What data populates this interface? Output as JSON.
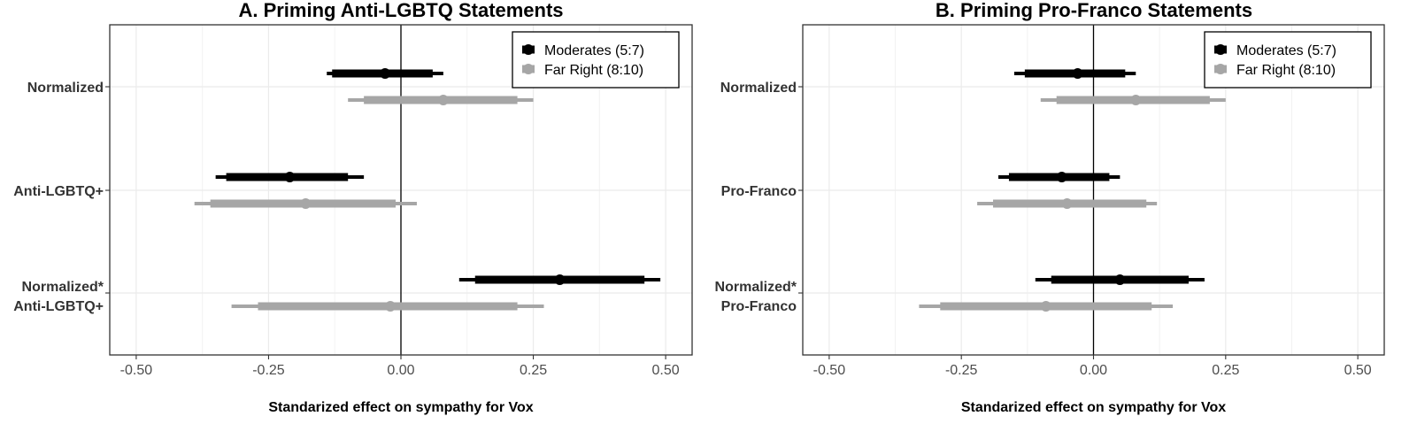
{
  "chart_data": [
    {
      "type": "coefficient-plot",
      "title": "A. Priming Anti-LGBTQ Statements",
      "xlabel": "Standarized effect on sympathy for Vox",
      "xlim": [
        -0.55,
        0.55
      ],
      "xticks": [
        -0.5,
        -0.25,
        0.0,
        0.25,
        0.5
      ],
      "xtick_labels": [
        "-0.50",
        "-0.25",
        "0.00",
        "0.25",
        "0.50"
      ],
      "grid": true,
      "reference_line": 0,
      "legend_position": "top-right",
      "categories": [
        {
          "lines": [
            "Normalized"
          ]
        },
        {
          "lines": [
            "Anti-LGBTQ+"
          ]
        },
        {
          "lines": [
            "Normalized*",
            "Anti-LGBTQ+"
          ]
        }
      ],
      "series": [
        {
          "name": "Moderates (5:7)",
          "color": "#000000",
          "estimates": [
            -0.03,
            -0.21,
            0.3
          ],
          "ci90": [
            [
              -0.13,
              0.06
            ],
            [
              -0.33,
              -0.1
            ],
            [
              0.14,
              0.46
            ]
          ],
          "ci95": [
            [
              -0.14,
              0.08
            ],
            [
              -0.35,
              -0.07
            ],
            [
              0.11,
              0.49
            ]
          ]
        },
        {
          "name": "Far Right (8:10)",
          "color": "#a6a6a6",
          "estimates": [
            0.08,
            -0.18,
            -0.02
          ],
          "ci90": [
            [
              -0.07,
              0.22
            ],
            [
              -0.36,
              -0.01
            ],
            [
              -0.27,
              0.22
            ]
          ],
          "ci95": [
            [
              -0.1,
              0.25
            ],
            [
              -0.39,
              0.03
            ],
            [
              -0.32,
              0.27
            ]
          ]
        }
      ]
    },
    {
      "type": "coefficient-plot",
      "title": "B. Priming Pro-Franco Statements",
      "xlabel": "Standarized effect on sympathy for Vox",
      "xlim": [
        -0.55,
        0.55
      ],
      "xticks": [
        -0.5,
        -0.25,
        0.0,
        0.25,
        0.5
      ],
      "xtick_labels": [
        "-0.50",
        "-0.25",
        "0.00",
        "0.25",
        "0.50"
      ],
      "grid": true,
      "reference_line": 0,
      "legend_position": "top-right",
      "categories": [
        {
          "lines": [
            "Normalized"
          ]
        },
        {
          "lines": [
            "Pro-Franco"
          ]
        },
        {
          "lines": [
            "Normalized*",
            "Pro-Franco"
          ]
        }
      ],
      "series": [
        {
          "name": "Moderates (5:7)",
          "color": "#000000",
          "estimates": [
            -0.03,
            -0.06,
            0.05
          ],
          "ci90": [
            [
              -0.13,
              0.06
            ],
            [
              -0.16,
              0.03
            ],
            [
              -0.08,
              0.18
            ]
          ],
          "ci95": [
            [
              -0.15,
              0.08
            ],
            [
              -0.18,
              0.05
            ],
            [
              -0.11,
              0.21
            ]
          ]
        },
        {
          "name": "Far Right (8:10)",
          "color": "#a6a6a6",
          "estimates": [
            0.08,
            -0.05,
            -0.09
          ],
          "ci90": [
            [
              -0.07,
              0.22
            ],
            [
              -0.19,
              0.1
            ],
            [
              -0.29,
              0.11
            ]
          ],
          "ci95": [
            [
              -0.1,
              0.25
            ],
            [
              -0.22,
              0.12
            ],
            [
              -0.33,
              0.15
            ]
          ]
        }
      ]
    }
  ]
}
